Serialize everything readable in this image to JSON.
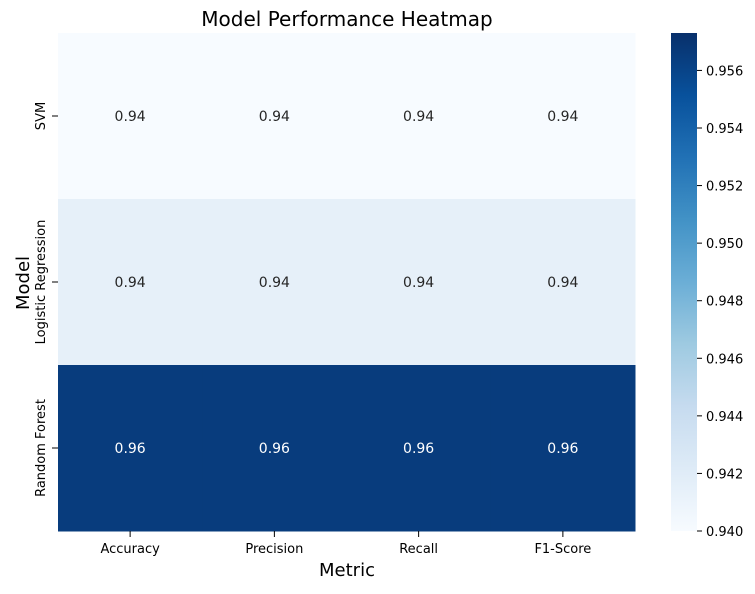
{
  "chart_data": {
    "type": "heatmap",
    "title": "Model Performance Heatmap",
    "xlabel": "Metric",
    "ylabel": "Model",
    "x_categories": [
      "Accuracy",
      "Precision",
      "Recall",
      "F1-Score"
    ],
    "y_categories": [
      "SVM",
      "Logistic Regression",
      "Random Forest"
    ],
    "values": [
      [
        0.94,
        0.94,
        0.94,
        0.94
      ],
      [
        0.9415,
        0.9415,
        0.9415,
        0.9415
      ],
      [
        0.9565,
        0.9565,
        0.9565,
        0.9565
      ]
    ],
    "annotations": [
      [
        "0.94",
        "0.94",
        "0.94",
        "0.94"
      ],
      [
        "0.94",
        "0.94",
        "0.94",
        "0.94"
      ],
      [
        "0.96",
        "0.96",
        "0.96",
        "0.96"
      ]
    ],
    "colorbar": {
      "colormap": "Blues",
      "range": [
        0.94,
        0.9573
      ],
      "ticks": [
        0.94,
        0.942,
        0.944,
        0.946,
        0.948,
        0.95,
        0.952,
        0.954,
        0.956
      ],
      "tick_labels": [
        "0.940",
        "0.942",
        "0.944",
        "0.946",
        "0.948",
        "0.950",
        "0.952",
        "0.954",
        "0.956"
      ]
    },
    "colors": {
      "low": "#f7fbff",
      "high": "#08306b",
      "text_dark": "#262626",
      "text_light": "#ffffff"
    }
  }
}
